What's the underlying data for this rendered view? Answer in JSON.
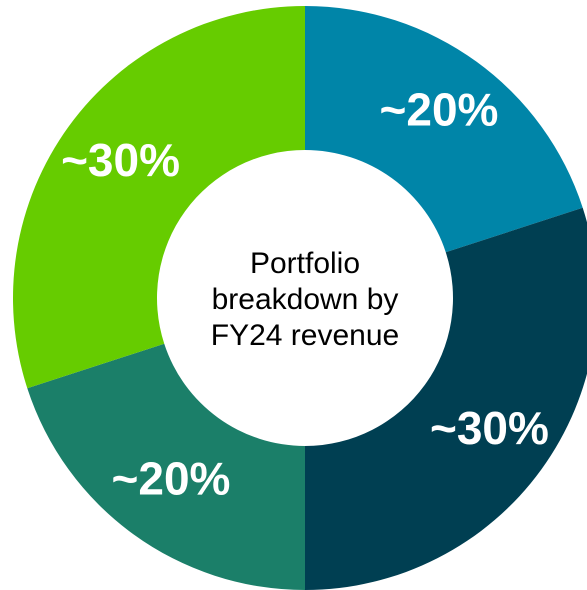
{
  "chart_data": {
    "type": "donut",
    "center_text": "Portfolio breakdown by FY24 revenue",
    "values": [
      20,
      30,
      20,
      30
    ],
    "value_labels": [
      "~20%",
      "~30%",
      "~20%",
      "~30%"
    ],
    "colors": [
      "#0085a8",
      "#003f52",
      "#1b7f69",
      "#66cc00"
    ]
  }
}
